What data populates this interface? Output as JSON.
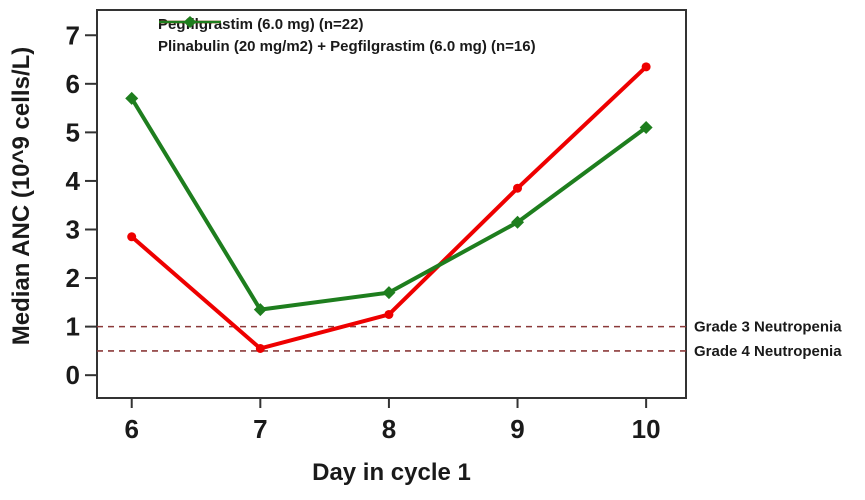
{
  "window": {
    "background": "#ffffff"
  },
  "legend": {
    "items": [
      {
        "label": "Pegfilgrastim (6.0 mg) (n=22)",
        "color": "#ee0000",
        "marker": "circle"
      },
      {
        "label": "Plinabulin (20 mg/m2) + Pegfilgrastim (6.0 mg) (n=16)",
        "color": "#1e7e1e",
        "marker": "diamond"
      }
    ]
  },
  "chart_data": {
    "type": "line",
    "title": "",
    "xlabel": "Day in cycle 1",
    "ylabel": "Median ANC (10^9 cells/L)",
    "x": [
      6,
      7,
      8,
      9,
      10
    ],
    "x_ticks": [
      "6",
      "7",
      "8",
      "9",
      "10"
    ],
    "y_ticks": [
      "0",
      "1",
      "2",
      "3",
      "4",
      "5",
      "6",
      "7"
    ],
    "xlim": [
      5.73,
      10.31
    ],
    "ylim": [
      -0.47,
      7.52
    ],
    "grid": false,
    "legend_position": "top-inside",
    "series": [
      {
        "name": "Pegfilgrastim (6.0 mg) (n=22)",
        "color": "#ee0000",
        "marker": "circle",
        "values": [
          2.85,
          0.55,
          1.25,
          3.85,
          6.35
        ]
      },
      {
        "name": "Plinabulin (20 mg/m2) + Pegfilgrastim (6.0 mg) (n=16)",
        "color": "#1e7e1e",
        "marker": "diamond",
        "values": [
          5.7,
          1.35,
          1.7,
          3.15,
          5.1
        ]
      }
    ],
    "reference_lines": [
      {
        "y": 1.0,
        "label": "Grade 3 Neutropenia",
        "color": "#8b3a3a",
        "style": "dashed"
      },
      {
        "y": 0.5,
        "label": "Grade 4 Neutropenia",
        "color": "#8b3a3a",
        "style": "dashed"
      }
    ],
    "axis_color": "#333333",
    "text_color": "#1a1a1a"
  }
}
